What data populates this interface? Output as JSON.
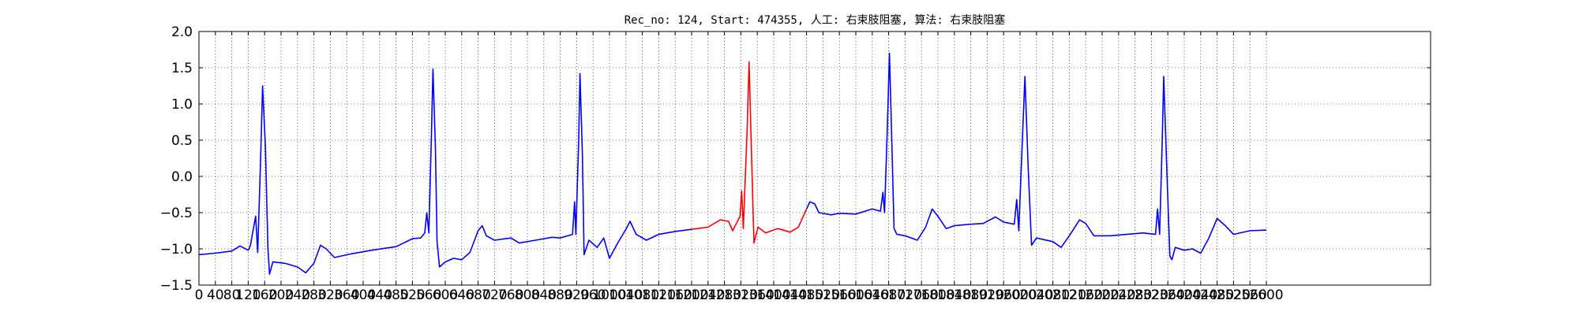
{
  "chart_data": {
    "type": "line",
    "title": "Rec_no: 124, Start: 474355, 人工: 右束肢阻塞, 算法: 右束肢阻塞",
    "xlabel": "",
    "ylabel": "",
    "xlim": [
      0,
      3000
    ],
    "ylim": [
      -1.5,
      2.0
    ],
    "x_ticks": [
      0,
      40,
      80,
      120,
      160,
      200,
      240,
      280,
      320,
      360,
      400,
      440,
      480,
      520,
      560,
      600,
      640,
      680,
      720,
      760,
      800,
      840,
      880,
      920,
      960,
      1000,
      1040,
      1080,
      1120,
      1160,
      1200,
      1240,
      1280,
      1320,
      1360,
      1400,
      1440,
      1480,
      1520,
      1560,
      1600,
      1640,
      1680,
      1720,
      1760,
      1800,
      1840,
      1880,
      1920,
      1960,
      2000,
      2040,
      2080,
      2120,
      2160,
      2200,
      2240,
      2280,
      2320,
      2360,
      2400,
      2440,
      2480,
      2520,
      2560,
      2600
    ],
    "x_tick_labels": [
      "0",
      "40",
      "80",
      "120",
      "160",
      "200",
      "240",
      "280",
      "320",
      "360",
      "400",
      "440",
      "480",
      "520",
      "560",
      "600",
      "640",
      "680",
      "720",
      "760",
      "800",
      "840",
      "880",
      "920",
      "960",
      "1000",
      "1040",
      "1080",
      "1120",
      "1160",
      "1200",
      "1240",
      "1280",
      "1320",
      "1360",
      "1400",
      "1440",
      "1480",
      "1520",
      "1560",
      "1600",
      "1640",
      "1680",
      "1720",
      "1760",
      "1800",
      "1840",
      "1880",
      "1920",
      "1960",
      "2000",
      "2040",
      "2080",
      "2120",
      "2160",
      "2200",
      "2240",
      "2280",
      "2320",
      "2360",
      "2400",
      "2440",
      "2480",
      "2520",
      "2560",
      "2600"
    ],
    "y_ticks": [
      -1.5,
      -1.0,
      -0.5,
      0.0,
      0.5,
      1.0,
      1.5,
      2.0
    ],
    "y_tick_labels": [
      "−1.5",
      "−1.0",
      "−0.5",
      "0.0",
      "0.5",
      "1.0",
      "1.5",
      "2.0"
    ],
    "grid": true,
    "series": [
      {
        "color": "#0000ff",
        "points": [
          [
            0,
            -1.08
          ],
          [
            40,
            -1.06
          ],
          [
            80,
            -1.03
          ],
          [
            100,
            -0.96
          ],
          [
            120,
            -1.02
          ],
          [
            125,
            -0.96
          ],
          [
            138,
            -0.55
          ],
          [
            143,
            -1.05
          ],
          [
            150,
            0.2
          ],
          [
            155,
            1.25
          ],
          [
            162,
            0.4
          ],
          [
            168,
            -1.0
          ],
          [
            172,
            -1.35
          ],
          [
            180,
            -1.18
          ],
          [
            210,
            -1.2
          ],
          [
            240,
            -1.25
          ],
          [
            260,
            -1.33
          ],
          [
            280,
            -1.2
          ],
          [
            296,
            -0.95
          ],
          [
            310,
            -1.0
          ],
          [
            330,
            -1.12
          ],
          [
            370,
            -1.07
          ],
          [
            420,
            -1.02
          ],
          [
            480,
            -0.97
          ],
          [
            520,
            -0.86
          ],
          [
            540,
            -0.85
          ],
          [
            550,
            -0.78
          ],
          [
            555,
            -0.5
          ],
          [
            560,
            -0.78
          ],
          [
            566,
            0.5
          ],
          [
            570,
            1.48
          ],
          [
            576,
            0.4
          ],
          [
            580,
            -0.9
          ],
          [
            586,
            -1.25
          ],
          [
            600,
            -1.18
          ],
          [
            620,
            -1.13
          ],
          [
            640,
            -1.15
          ],
          [
            660,
            -1.05
          ],
          [
            680,
            -0.75
          ],
          [
            690,
            -0.68
          ],
          [
            700,
            -0.82
          ],
          [
            720,
            -0.88
          ],
          [
            760,
            -0.85
          ],
          [
            780,
            -0.92
          ],
          [
            820,
            -0.88
          ],
          [
            860,
            -0.84
          ],
          [
            880,
            -0.85
          ],
          [
            910,
            -0.8
          ],
          [
            915,
            -0.35
          ],
          [
            918,
            -0.8
          ],
          [
            925,
            0.5
          ],
          [
            928,
            1.42
          ],
          [
            934,
            0.3
          ],
          [
            938,
            -1.08
          ],
          [
            950,
            -0.88
          ],
          [
            970,
            -0.98
          ],
          [
            986,
            -0.85
          ],
          [
            1000,
            -1.13
          ],
          [
            1020,
            -0.92
          ],
          [
            1040,
            -0.73
          ],
          [
            1050,
            -0.62
          ],
          [
            1065,
            -0.8
          ],
          [
            1090,
            -0.88
          ],
          [
            1120,
            -0.8
          ],
          [
            1160,
            -0.76
          ],
          [
            1200,
            -0.73
          ]
        ]
      },
      {
        "color": "#ff0000",
        "points": [
          [
            1200,
            -0.73
          ],
          [
            1240,
            -0.7
          ],
          [
            1270,
            -0.6
          ],
          [
            1290,
            -0.62
          ],
          [
            1300,
            -0.75
          ],
          [
            1318,
            -0.55
          ],
          [
            1322,
            -0.2
          ],
          [
            1326,
            -0.72
          ],
          [
            1335,
            0.6
          ],
          [
            1340,
            1.58
          ],
          [
            1346,
            0.3
          ],
          [
            1352,
            -0.92
          ],
          [
            1362,
            -0.7
          ],
          [
            1380,
            -0.78
          ],
          [
            1410,
            -0.72
          ],
          [
            1440,
            -0.77
          ],
          [
            1460,
            -0.7
          ],
          [
            1476,
            -0.5
          ],
          [
            1480,
            -0.45
          ]
        ]
      },
      {
        "color": "#0000ff",
        "points": [
          [
            1480,
            -0.45
          ],
          [
            1488,
            -0.35
          ],
          [
            1500,
            -0.38
          ],
          [
            1510,
            -0.5
          ],
          [
            1540,
            -0.53
          ],
          [
            1560,
            -0.51
          ],
          [
            1600,
            -0.52
          ],
          [
            1640,
            -0.45
          ],
          [
            1660,
            -0.48
          ],
          [
            1666,
            -0.22
          ],
          [
            1670,
            -0.5
          ],
          [
            1677,
            0.7
          ],
          [
            1682,
            1.7
          ],
          [
            1688,
            0.4
          ],
          [
            1693,
            -0.72
          ],
          [
            1700,
            -0.8
          ],
          [
            1720,
            -0.82
          ],
          [
            1750,
            -0.88
          ],
          [
            1770,
            -0.7
          ],
          [
            1786,
            -0.45
          ],
          [
            1800,
            -0.55
          ],
          [
            1820,
            -0.72
          ],
          [
            1840,
            -0.68
          ],
          [
            1880,
            -0.66
          ],
          [
            1910,
            -0.65
          ],
          [
            1940,
            -0.56
          ],
          [
            1960,
            -0.63
          ],
          [
            1986,
            -0.66
          ],
          [
            1992,
            -0.32
          ],
          [
            1997,
            -0.75
          ],
          [
            2005,
            0.4
          ],
          [
            2012,
            1.38
          ],
          [
            2020,
            0.1
          ],
          [
            2028,
            -0.95
          ],
          [
            2040,
            -0.85
          ],
          [
            2080,
            -0.9
          ],
          [
            2100,
            -0.98
          ],
          [
            2120,
            -0.82
          ],
          [
            2145,
            -0.6
          ],
          [
            2160,
            -0.65
          ],
          [
            2180,
            -0.82
          ],
          [
            2220,
            -0.82
          ],
          [
            2260,
            -0.8
          ],
          [
            2300,
            -0.78
          ],
          [
            2330,
            -0.8
          ],
          [
            2335,
            -0.45
          ],
          [
            2340,
            -0.8
          ],
          [
            2346,
            0.4
          ],
          [
            2350,
            1.38
          ],
          [
            2358,
            0.0
          ],
          [
            2365,
            -1.1
          ],
          [
            2370,
            -1.15
          ],
          [
            2378,
            -0.98
          ],
          [
            2400,
            -1.02
          ],
          [
            2420,
            -1.0
          ],
          [
            2440,
            -1.06
          ],
          [
            2460,
            -0.85
          ],
          [
            2480,
            -0.58
          ],
          [
            2500,
            -0.68
          ],
          [
            2520,
            -0.8
          ],
          [
            2560,
            -0.75
          ],
          [
            2600,
            -0.74
          ]
        ]
      }
    ]
  }
}
